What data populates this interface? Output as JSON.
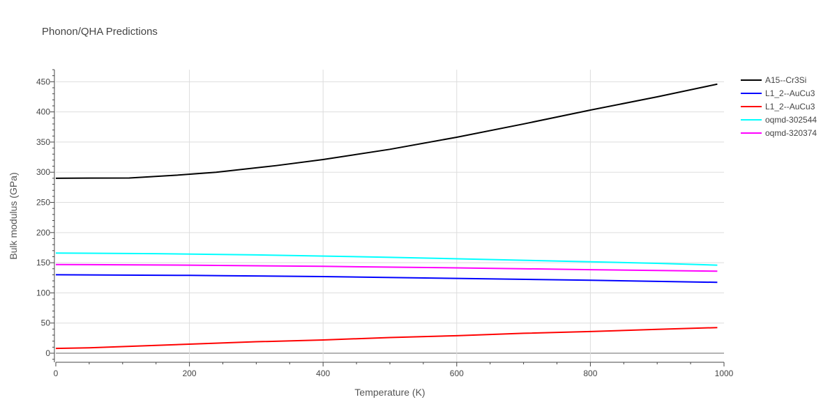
{
  "chart_data": {
    "type": "line",
    "title": "Phonon/QHA Predictions",
    "xlabel": "Temperature (K)",
    "ylabel": "Bulk modulus (GPa)",
    "xlim": [
      0,
      1000
    ],
    "ylim": [
      -15,
      470
    ],
    "x_ticks": [
      0,
      200,
      400,
      600,
      800,
      1000
    ],
    "y_ticks": [
      0,
      50,
      100,
      150,
      200,
      250,
      300,
      350,
      400,
      450
    ],
    "grid": true,
    "legend_position": "top-right",
    "series": [
      {
        "name": "A15--Cr3Si",
        "color": "#000000",
        "x": [
          0,
          110,
          180,
          240,
          330,
          400,
          500,
          600,
          700,
          800,
          900,
          990
        ],
        "y": [
          290,
          290.5,
          295,
          300,
          311,
          321,
          338,
          358,
          380,
          403,
          425,
          446
        ]
      },
      {
        "name": "L1_2--AuCu3",
        "color": "#0000ff",
        "x": [
          0,
          100,
          200,
          250,
          400,
          600,
          800,
          990
        ],
        "y": [
          130,
          129.5,
          129,
          128.5,
          127,
          124,
          121,
          117.5
        ]
      },
      {
        "name": "L1_2--AuCu3",
        "color": "#ff0000",
        "x": [
          0,
          50,
          100,
          200,
          300,
          400,
          500,
          600,
          700,
          800,
          900,
          990
        ],
        "y": [
          8,
          9,
          11,
          15,
          19,
          22,
          26,
          29,
          33,
          36,
          39.5,
          42.5
        ]
      },
      {
        "name": "oqmd-302544",
        "color": "#00ffff",
        "x": [
          0,
          150,
          300,
          500,
          700,
          900,
          990
        ],
        "y": [
          166,
          165,
          163,
          159,
          154,
          149,
          146
        ]
      },
      {
        "name": "oqmd-320374",
        "color": "#ff00ff",
        "x": [
          0,
          200,
          400,
          600,
          800,
          990
        ],
        "y": [
          147,
          146,
          144,
          141.5,
          138.5,
          136
        ]
      }
    ]
  }
}
